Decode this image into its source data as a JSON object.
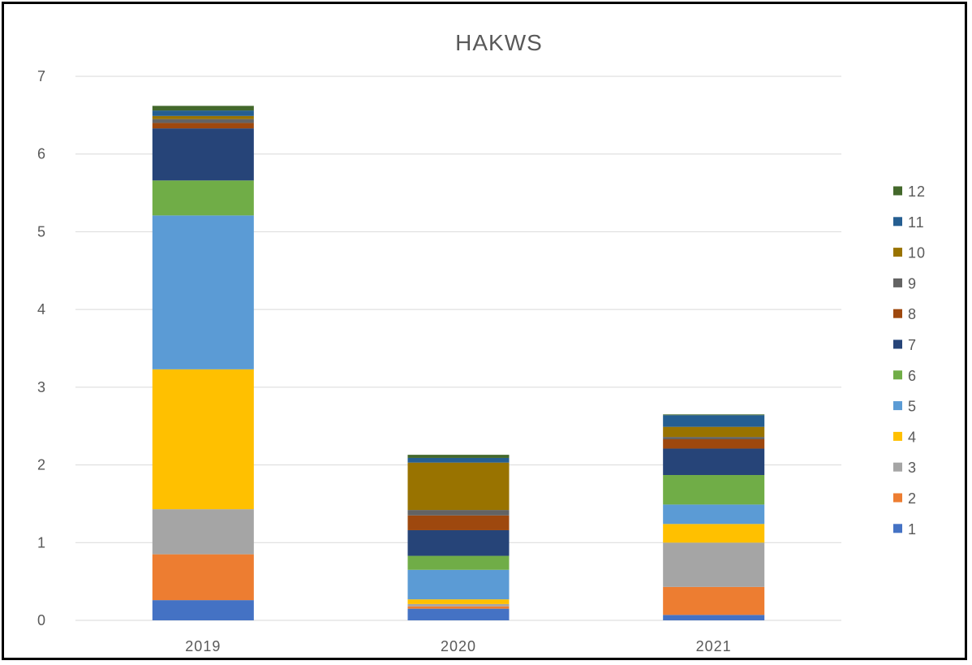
{
  "chart_data": {
    "type": "bar",
    "stacked": true,
    "title": "HAKWS",
    "categories": [
      "2019",
      "2020",
      "2021"
    ],
    "ylim": [
      0,
      7
    ],
    "yticks": [
      0,
      1,
      2,
      3,
      4,
      5,
      6,
      7
    ],
    "grid": true,
    "legend_position": "right",
    "series": [
      {
        "name": "1",
        "color": "#4472C4",
        "values": [
          0.26,
          0.15,
          0.07
        ]
      },
      {
        "name": "2",
        "color": "#ED7D31",
        "values": [
          0.59,
          0.03,
          0.36
        ]
      },
      {
        "name": "3",
        "color": "#A5A5A5",
        "values": [
          0.58,
          0.03,
          0.57
        ]
      },
      {
        "name": "4",
        "color": "#FFC000",
        "values": [
          1.8,
          0.06,
          0.24
        ]
      },
      {
        "name": "5",
        "color": "#5B9BD5",
        "values": [
          1.98,
          0.38,
          0.25
        ]
      },
      {
        "name": "6",
        "color": "#70AD47",
        "values": [
          0.45,
          0.18,
          0.38
        ]
      },
      {
        "name": "7",
        "color": "#264478",
        "values": [
          0.67,
          0.33,
          0.34
        ]
      },
      {
        "name": "8",
        "color": "#9E480E",
        "values": [
          0.07,
          0.19,
          0.12
        ]
      },
      {
        "name": "9",
        "color": "#636363",
        "values": [
          0.05,
          0.07,
          0.03
        ]
      },
      {
        "name": "10",
        "color": "#997300",
        "values": [
          0.04,
          0.61,
          0.13
        ]
      },
      {
        "name": "11",
        "color": "#255E91",
        "values": [
          0.07,
          0.06,
          0.15
        ]
      },
      {
        "name": "12",
        "color": "#43682B",
        "values": [
          0.06,
          0.04,
          0.01
        ]
      }
    ]
  }
}
